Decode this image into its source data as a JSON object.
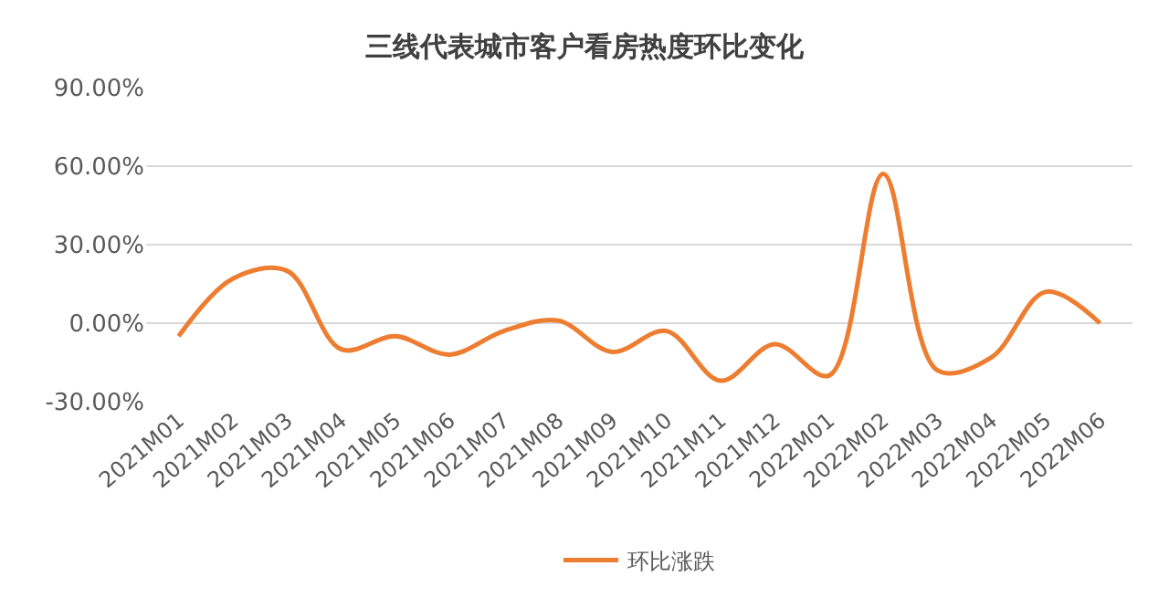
{
  "chart_data": {
    "type": "line",
    "title": "三线代表城市客户看房热度环比变化",
    "categories": [
      "2021M01",
      "2021M02",
      "2021M03",
      "2021M04",
      "2021M05",
      "2021M06",
      "2021M07",
      "2021M08",
      "2021M09",
      "2021M10",
      "2021M11",
      "2021M12",
      "2022M01",
      "2022M02",
      "2022M03",
      "2022M04",
      "2022M05",
      "2022M06"
    ],
    "series": [
      {
        "name": "环比涨跌",
        "color": "#ed7d31",
        "values": [
          -5,
          17,
          20,
          -10,
          -5,
          -12,
          -3,
          1,
          -11,
          -3,
          -22,
          -8,
          -20,
          57,
          -18,
          -13,
          12,
          0
        ]
      }
    ],
    "ylim": [
      -30,
      90
    ],
    "yticks": [
      {
        "value": -30,
        "label": "-30.00%"
      },
      {
        "value": 0,
        "label": "0.00%"
      },
      {
        "value": 30,
        "label": "30.00%"
      },
      {
        "value": 60,
        "label": "60.00%"
      },
      {
        "value": 90,
        "label": "90.00%"
      }
    ],
    "grid": "y",
    "legend": "bottom",
    "marker": "none",
    "line_style": "solid"
  }
}
